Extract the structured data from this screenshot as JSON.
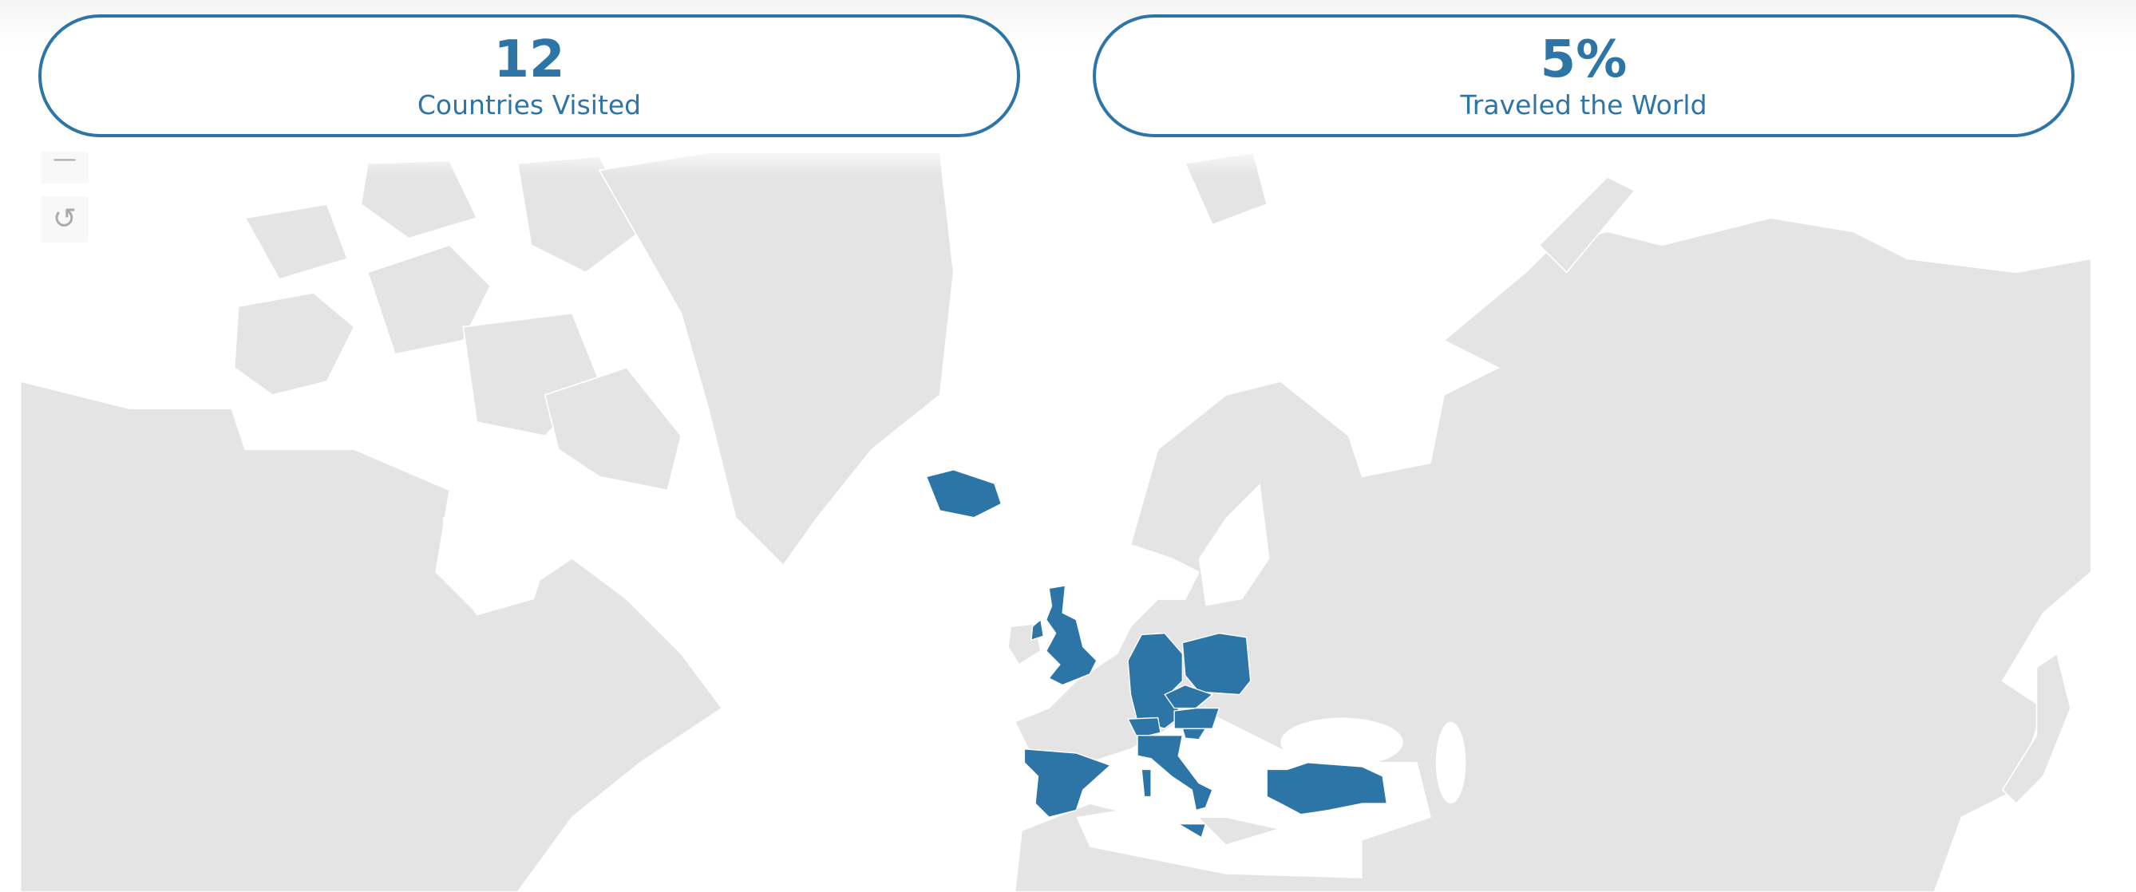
{
  "colors": {
    "accent": "#2c75a6",
    "land": "#e4e4e4",
    "background": "#ffffff"
  },
  "stats": [
    {
      "value": "12",
      "label": "Countries Visited"
    },
    {
      "value": "5%",
      "label": "Traveled the World"
    }
  ],
  "map_controls": {
    "zoom_out_icon": "minus-icon",
    "reset_icon": "reset-rotate-icon",
    "zoom_out_glyph": "—",
    "reset_glyph": "↺"
  }
}
